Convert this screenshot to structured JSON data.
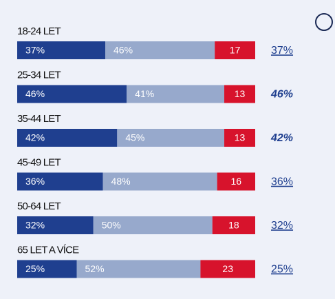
{
  "chart_data": {
    "type": "stacked-bar",
    "categories": [
      "18-24 LET",
      "25-34 LET",
      "35-44 LET",
      "45-49 LET",
      "50-64 LET",
      "65 LET A VÍCE"
    ],
    "series": [
      {
        "color": "#1f3f8f",
        "values": [
          37,
          46,
          42,
          36,
          32,
          25
        ],
        "value_labels": [
          "37%",
          "46%",
          "42%",
          "36%",
          "32%",
          "25%"
        ]
      },
      {
        "color": "#97a9cc",
        "values": [
          46,
          41,
          45,
          48,
          50,
          52
        ],
        "value_labels": [
          "46%",
          "41%",
          "45%",
          "48%",
          "50%",
          "52%"
        ]
      },
      {
        "color": "#d7132c",
        "values": [
          17,
          13,
          13,
          16,
          18,
          23
        ]
      }
    ],
    "side_labels": [
      "37%",
      "46%",
      "42%",
      "36%",
      "32%",
      "25%"
    ],
    "highlight": [
      false,
      true,
      true,
      false,
      false,
      false
    ]
  }
}
